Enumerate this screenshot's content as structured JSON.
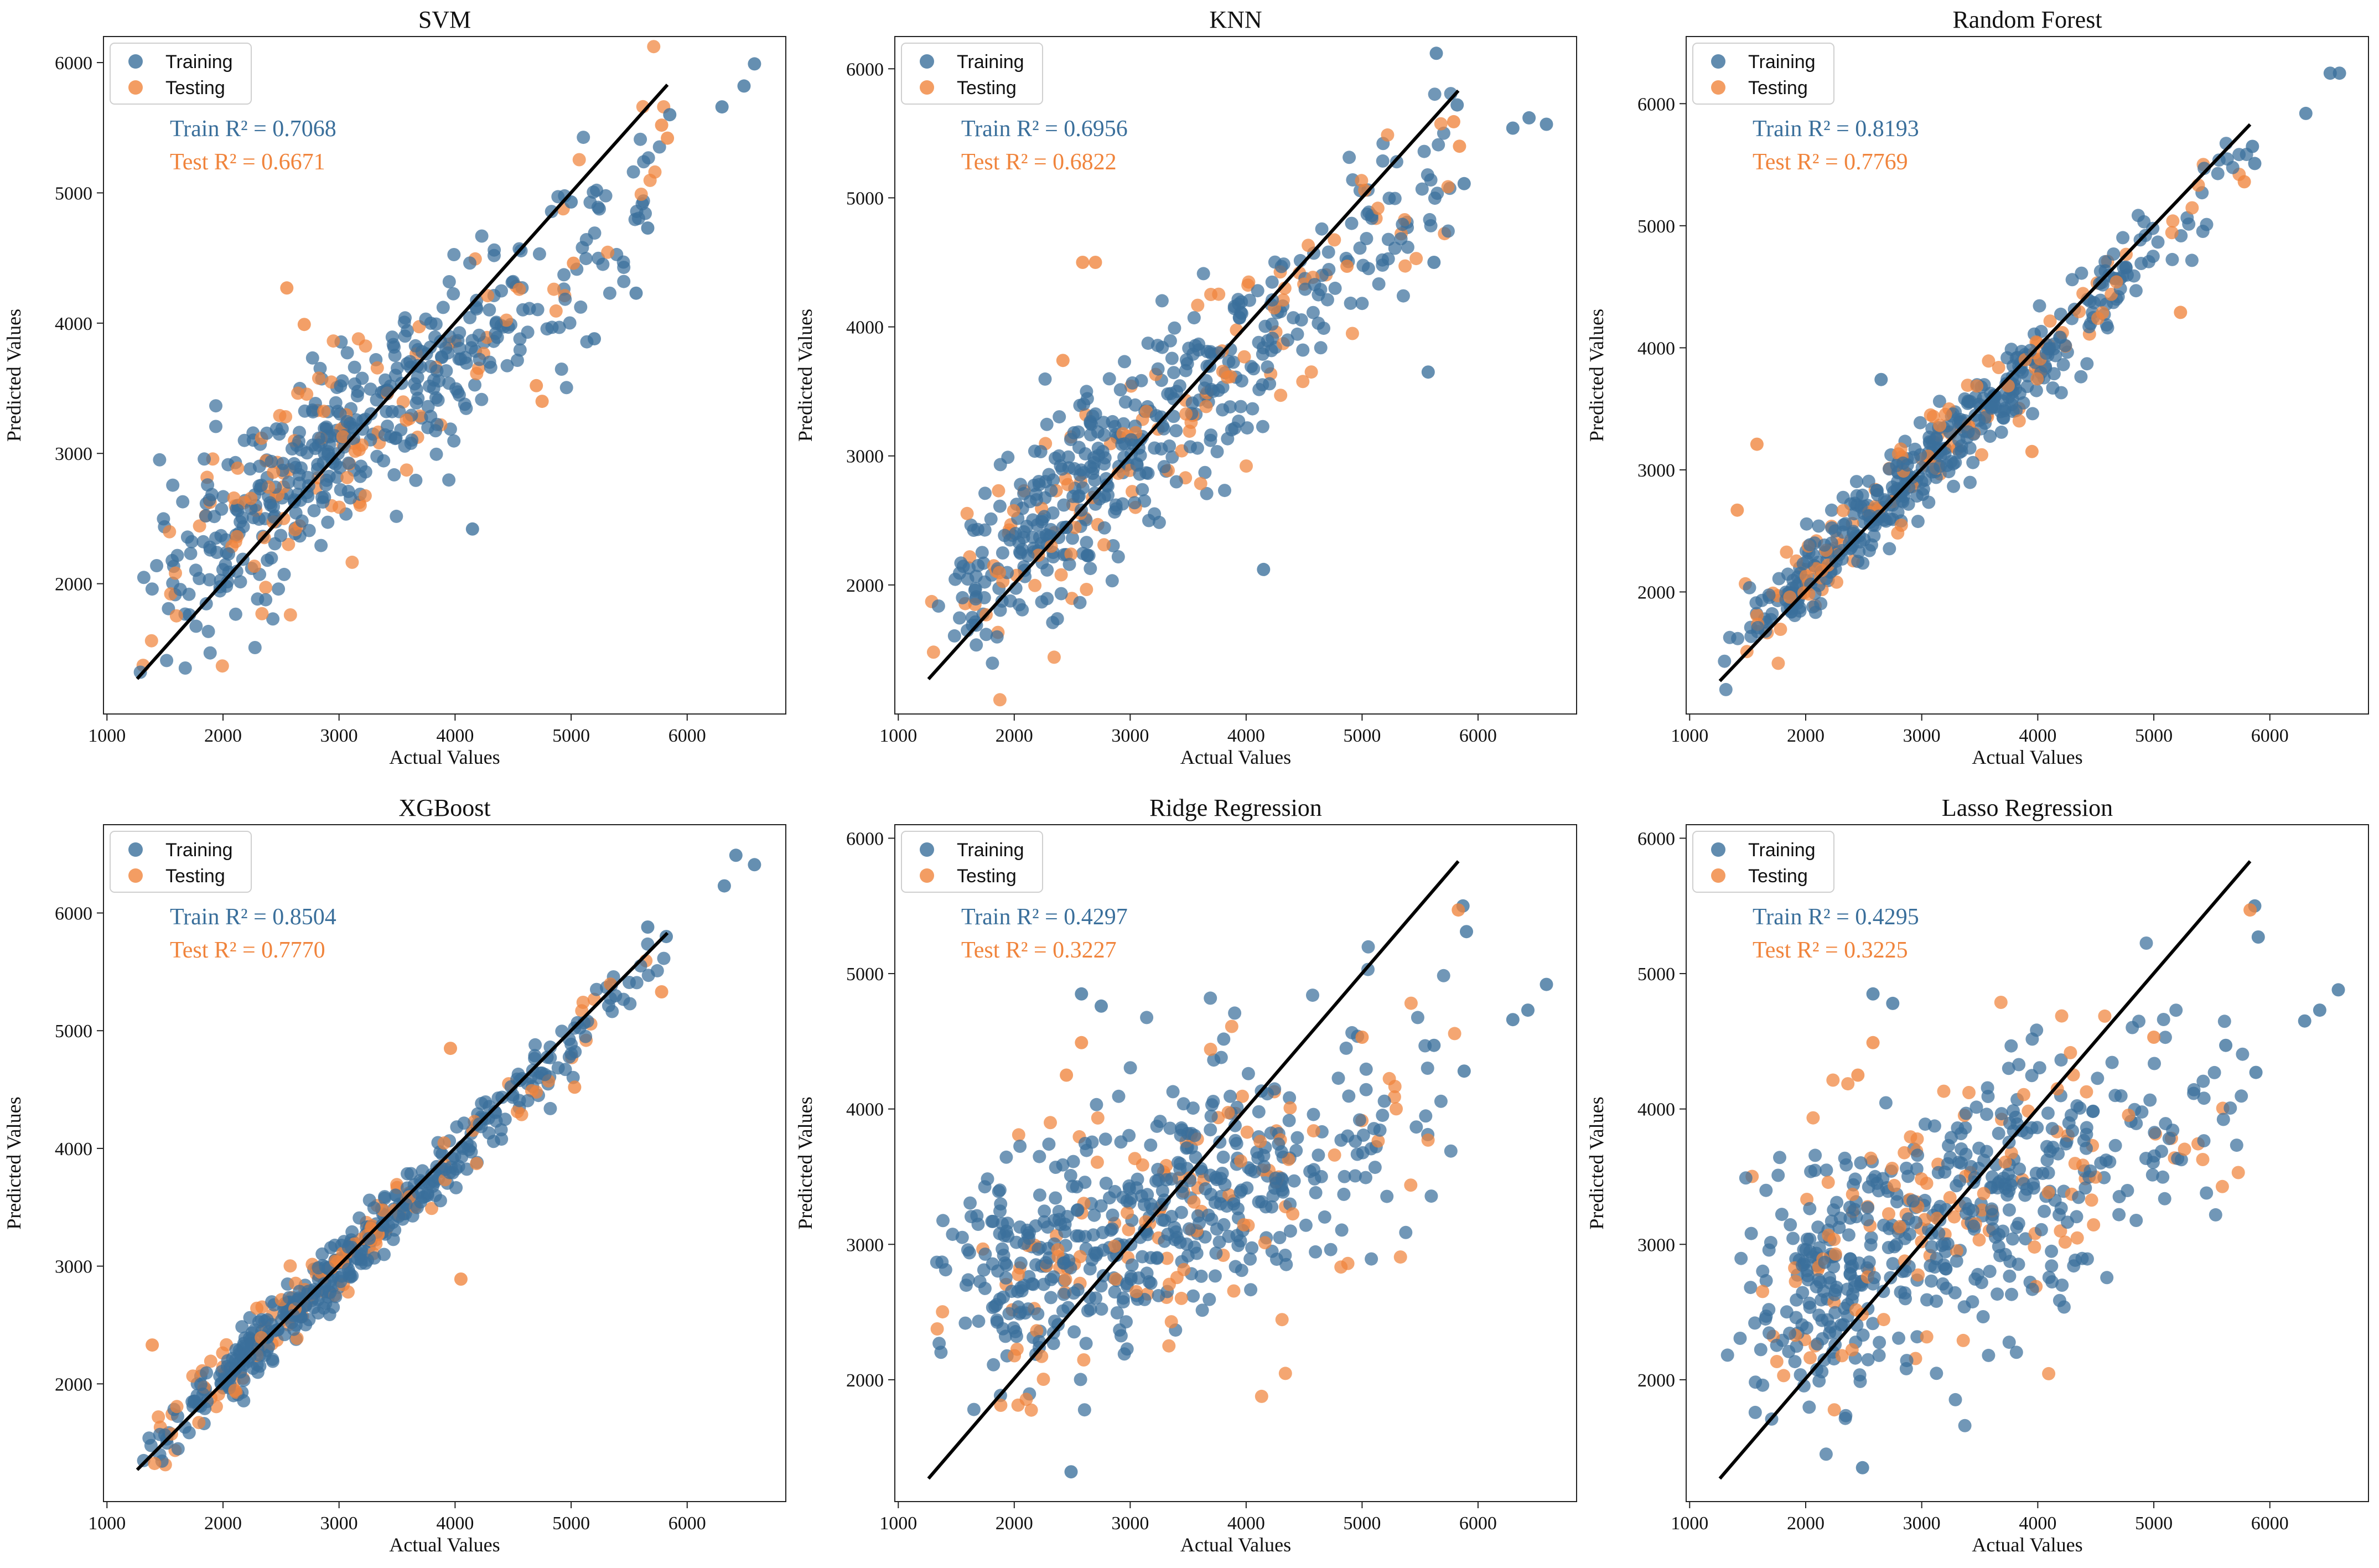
{
  "figure": {
    "style": {
      "train_color": "#3a6f9b",
      "test_color": "#f0843c",
      "line_color": "#000000"
    },
    "legend": {
      "training_label": "Training",
      "testing_label": "Testing",
      "placement": "top-left"
    }
  },
  "chart_data": [
    {
      "type": "scatter",
      "title": "SVM",
      "xlabel": "Actual Values",
      "ylabel": "Predicted Values",
      "xlim": [
        970,
        6850
      ],
      "ylim": [
        1000,
        6200
      ],
      "xticks": [
        1000,
        2000,
        3000,
        4000,
        5000,
        6000
      ],
      "xtick_labels": [
        "1000",
        "2000",
        "3000",
        "4000",
        "5000",
        "6000"
      ],
      "yticks": [
        2000,
        3000,
        4000,
        5000,
        6000
      ],
      "ytick_labels": [
        "2000",
        "3000",
        "4000",
        "5000",
        "6000"
      ],
      "train_r2": "Train R² = 0.7068",
      "test_r2": "Test R² = 0.6671",
      "identity_line": [
        [
          1260,
          1270
        ],
        [
          5830,
          5830
        ]
      ],
      "fit": {
        "slope": 0.72,
        "noise": 360,
        "train_n": 420,
        "test_n": 110,
        "seed": 11
      },
      "series": [
        {
          "name": "Training",
          "points": [
            [
              6580,
              5990
            ],
            [
              6490,
              5820
            ],
            [
              6300,
              5660
            ],
            [
              5560,
              4230
            ],
            [
              5660,
              4730
            ],
            [
              5850,
              5600
            ],
            [
              4150,
              2420
            ],
            [
              5000,
              4930
            ],
            [
              5200,
              3880
            ]
          ]
        },
        {
          "name": "Testing",
          "points": [
            [
              5830,
              5420
            ],
            [
              5780,
              5520
            ],
            [
              2550,
              4270
            ],
            [
              2700,
              3990
            ],
            [
              5020,
              4460
            ],
            [
              4750,
              3400
            ],
            [
              4700,
              3520
            ]
          ]
        }
      ]
    },
    {
      "type": "scatter",
      "title": "KNN",
      "xlabel": "Actual Values",
      "ylabel": "Predicted Values",
      "xlim": [
        970,
        6850
      ],
      "ylim": [
        1000,
        6250
      ],
      "xticks": [
        1000,
        2000,
        3000,
        4000,
        5000,
        6000
      ],
      "xtick_labels": [
        "1000",
        "2000",
        "3000",
        "4000",
        "5000",
        "6000"
      ],
      "yticks": [
        2000,
        3000,
        4000,
        5000,
        6000
      ],
      "ytick_labels": [
        "2000",
        "3000",
        "4000",
        "5000",
        "6000"
      ],
      "train_r2": "Train R² = 0.6956",
      "test_r2": "Test R² = 0.6822",
      "identity_line": [
        [
          1260,
          1270
        ],
        [
          5830,
          5830
        ]
      ],
      "fit": {
        "slope": 0.78,
        "noise": 330,
        "train_n": 420,
        "test_n": 110,
        "seed": 23
      },
      "series": [
        {
          "name": "Training",
          "points": [
            [
              5640,
              6120
            ],
            [
              6590,
              5570
            ],
            [
              6440,
              5620
            ],
            [
              6300,
              5540
            ],
            [
              5880,
              5110
            ],
            [
              5820,
              5720
            ],
            [
              4150,
              2120
            ],
            [
              5570,
              3650
            ],
            [
              5620,
              4500
            ]
          ]
        },
        {
          "name": "Testing",
          "points": [
            [
              2590,
              4500
            ],
            [
              2700,
              4500
            ],
            [
              5790,
              5590
            ],
            [
              5840,
              5400
            ],
            [
              4870,
              4470
            ],
            [
              2420,
              3740
            ]
          ]
        }
      ]
    },
    {
      "type": "scatter",
      "title": "Random Forest",
      "xlabel": "Actual Values",
      "ylabel": "Predicted Values",
      "xlim": [
        970,
        6850
      ],
      "ylim": [
        1000,
        6550
      ],
      "xticks": [
        1000,
        2000,
        3000,
        4000,
        5000,
        6000
      ],
      "xtick_labels": [
        "1000",
        "2000",
        "3000",
        "4000",
        "5000",
        "6000"
      ],
      "yticks": [
        2000,
        3000,
        4000,
        5000,
        6000
      ],
      "ytick_labels": [
        "2000",
        "3000",
        "4000",
        "5000",
        "6000"
      ],
      "train_r2": "Train R² = 0.8193",
      "test_r2": "Test R² = 0.7769",
      "identity_line": [
        [
          1260,
          1270
        ],
        [
          5830,
          5830
        ]
      ],
      "fit": {
        "slope": 0.9,
        "noise": 170,
        "train_n": 420,
        "test_n": 110,
        "seed": 37
      },
      "series": [
        {
          "name": "Training",
          "points": [
            [
              6600,
              6250
            ],
            [
              6520,
              6250
            ],
            [
              6310,
              5920
            ],
            [
              5850,
              5650
            ],
            [
              5870,
              5510
            ],
            [
              2650,
              3740
            ]
          ]
        },
        {
          "name": "Testing",
          "points": [
            [
              1580,
              3210
            ],
            [
              1410,
              2670
            ],
            [
              5780,
              5360
            ],
            [
              5230,
              4290
            ],
            [
              3950,
              3150
            ]
          ]
        }
      ]
    },
    {
      "type": "scatter",
      "title": "XGBoost",
      "xlabel": "Actual Values",
      "ylabel": "Predicted Values",
      "xlim": [
        970,
        6850
      ],
      "ylim": [
        1000,
        6750
      ],
      "xticks": [
        1000,
        2000,
        3000,
        4000,
        5000,
        6000
      ],
      "xtick_labels": [
        "1000",
        "2000",
        "3000",
        "4000",
        "5000",
        "6000"
      ],
      "yticks": [
        2000,
        3000,
        4000,
        5000,
        6000
      ],
      "ytick_labels": [
        "2000",
        "3000",
        "4000",
        "5000",
        "6000"
      ],
      "train_r2": "Train R² = 0.8504",
      "test_r2": "Test R² = 0.7770",
      "identity_line": [
        [
          1260,
          1270
        ],
        [
          5830,
          5830
        ]
      ],
      "fit": {
        "slope": 0.95,
        "noise": 130,
        "train_n": 420,
        "test_n": 110,
        "seed": 53
      },
      "series": [
        {
          "name": "Training",
          "points": [
            [
              6420,
              6490
            ],
            [
              6580,
              6410
            ],
            [
              6320,
              6230
            ],
            [
              5820,
              5800
            ],
            [
              5660,
              5880
            ]
          ]
        },
        {
          "name": "Testing",
          "points": [
            [
              5780,
              5330
            ],
            [
              3960,
              4850
            ],
            [
              4050,
              2890
            ],
            [
              5030,
              4520
            ],
            [
              1390,
              2330
            ]
          ]
        }
      ]
    },
    {
      "type": "scatter",
      "title": "Ridge Regression",
      "xlabel": "Actual Values",
      "ylabel": "Predicted Values",
      "xlim": [
        970,
        6850
      ],
      "ylim": [
        1100,
        6100
      ],
      "xticks": [
        1000,
        2000,
        3000,
        4000,
        5000,
        6000
      ],
      "xtick_labels": [
        "1000",
        "2000",
        "3000",
        "4000",
        "5000",
        "6000"
      ],
      "yticks": [
        2000,
        3000,
        4000,
        5000,
        6000
      ],
      "ytick_labels": [
        "2000",
        "3000",
        "4000",
        "5000",
        "6000"
      ],
      "train_r2": "Train R² = 0.4297",
      "test_r2": "Test R² = 0.3227",
      "identity_line": [
        [
          1260,
          1270
        ],
        [
          5830,
          5830
        ]
      ],
      "fit": {
        "slope": 0.36,
        "noise": 440,
        "train_n": 460,
        "test_n": 120,
        "seed": 71
      },
      "series": [
        {
          "name": "Training",
          "points": [
            [
              6590,
              4920
            ],
            [
              6430,
              4730
            ],
            [
              6300,
              4660
            ],
            [
              5870,
              5500
            ],
            [
              5900,
              5310
            ],
            [
              5880,
              4280
            ],
            [
              2490,
              1320
            ],
            [
              2580,
              4850
            ],
            [
              2750,
              4760
            ],
            [
              5620,
              4470
            ]
          ]
        },
        {
          "name": "Testing",
          "points": [
            [
              5830,
              5470
            ],
            [
              2580,
              4490
            ],
            [
              2450,
              4250
            ],
            [
              5000,
              4530
            ]
          ]
        }
      ]
    },
    {
      "type": "scatter",
      "title": "Lasso Regression",
      "xlabel": "Actual Values",
      "ylabel": "Predicted Values",
      "xlim": [
        970,
        6850
      ],
      "ylim": [
        1100,
        6100
      ],
      "xticks": [
        1000,
        2000,
        3000,
        4000,
        5000,
        6000
      ],
      "xtick_labels": [
        "1000",
        "2000",
        "3000",
        "4000",
        "5000",
        "6000"
      ],
      "yticks": [
        2000,
        3000,
        4000,
        5000,
        6000
      ],
      "ytick_labels": [
        "2000",
        "3000",
        "4000",
        "5000",
        "6000"
      ],
      "train_r2": "Train R² = 0.4295",
      "test_r2": "Test R² = 0.3225",
      "identity_line": [
        [
          1260,
          1270
        ],
        [
          5830,
          5830
        ]
      ],
      "fit": {
        "slope": 0.36,
        "noise": 440,
        "train_n": 460,
        "test_n": 120,
        "seed": 89
      },
      "series": [
        {
          "name": "Training",
          "points": [
            [
              6590,
              4880
            ],
            [
              6430,
              4730
            ],
            [
              6300,
              4650
            ],
            [
              5870,
              5500
            ],
            [
              5900,
              5270
            ],
            [
              5880,
              4270
            ],
            [
              2490,
              1350
            ],
            [
              2580,
              4850
            ],
            [
              2750,
              4780
            ],
            [
              5620,
              4470
            ]
          ]
        },
        {
          "name": "Testing",
          "points": [
            [
              5830,
              5470
            ],
            [
              2580,
              4490
            ],
            [
              2450,
              4250
            ],
            [
              5000,
              4530
            ]
          ]
        }
      ]
    }
  ]
}
